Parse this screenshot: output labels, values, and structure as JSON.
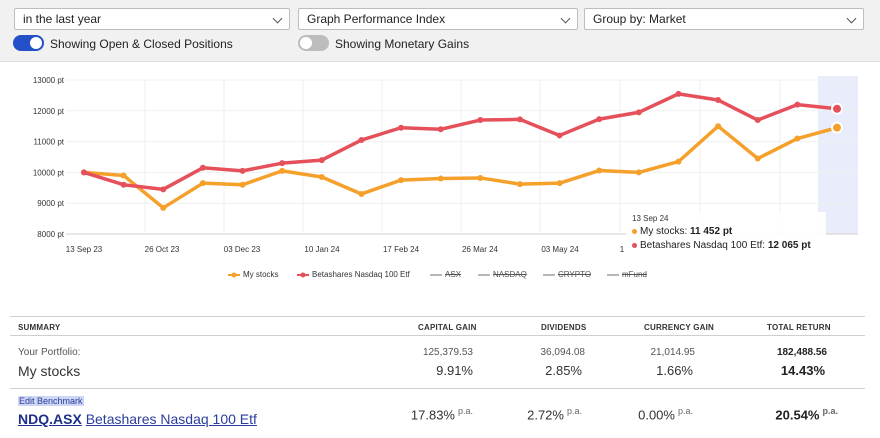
{
  "controls": {
    "period": "in the last year",
    "graph_mode": "Graph Performance Index",
    "group_by": "Group by: Market",
    "toggle_positions_label": "Showing Open & Closed Positions",
    "toggle_positions_on": true,
    "toggle_monetary_label": "Showing Monetary Gains",
    "toggle_monetary_on": false
  },
  "chart_data": {
    "type": "line",
    "x_tick_labels": [
      "13 Sep 23",
      "26 Oct 23",
      "03 Dec 23",
      "10 Jan 24",
      "17 Feb 24",
      "26 Mar 24",
      "03 May 24"
    ],
    "y_tick_labels": [
      "13000 pt",
      "12000 pt",
      "11000 pt",
      "10000 pt",
      "9000 pt",
      "8000 pt"
    ],
    "ylim": [
      8000,
      13000
    ],
    "grid": true,
    "legend_position": "bottom",
    "series": [
      {
        "name": "My stocks",
        "color": "#f5a02a",
        "values": [
          10000,
          9900,
          8850,
          9650,
          9600,
          10050,
          9850,
          9300,
          9750,
          9800,
          9820,
          9620,
          9650,
          10060,
          10000,
          10350,
          11500,
          10450,
          11100,
          11452
        ]
      },
      {
        "name": "Betashares Nasdaq 100 Etf",
        "color": "#e5505b",
        "values": [
          10000,
          9600,
          9450,
          10150,
          10050,
          10300,
          10400,
          11050,
          11450,
          11400,
          11700,
          11720,
          11200,
          11730,
          11950,
          12550,
          12350,
          11700,
          12200,
          12065
        ]
      }
    ],
    "hidden_series": [
      "ASX",
      "NASDAQ",
      "CRYPTO",
      "mFund"
    ],
    "tooltip": {
      "date": "13 Sep 24",
      "rows": [
        {
          "label": "My stocks:",
          "value": "11 452 pt",
          "color": "#f5a02a"
        },
        {
          "label": "Betashares Nasdaq 100 Etf:",
          "value": "12 065 pt",
          "color": "#e5505b"
        }
      ]
    }
  },
  "summary": {
    "headers": {
      "summary": "SUMMARY",
      "capital_gain": "CAPITAL GAIN",
      "dividends": "DIVIDENDS",
      "currency_gain": "CURRENCY GAIN",
      "total_return": "TOTAL RETURN"
    },
    "portfolio": {
      "label": "Your Portfolio:",
      "name": "My stocks",
      "capital_gain_amount": "125,379.53",
      "capital_gain_pct": "9.91%",
      "dividends_amount": "36,094.08",
      "dividends_pct": "2.85%",
      "currency_gain_amount": "21,014.95",
      "currency_gain_pct": "1.66%",
      "total_return_amount": "182,488.56",
      "total_return_pct": "14.43%"
    },
    "benchmark": {
      "edit_label": "Edit Benchmark",
      "ticker": "NDQ.ASX",
      "name": "Betashares Nasdaq 100 Etf",
      "capital_gain_pct": "17.83%",
      "dividends_pct": "2.72%",
      "currency_gain_pct": "0.00%",
      "total_return_pct": "20.54%",
      "per_annum": "p.a."
    }
  }
}
